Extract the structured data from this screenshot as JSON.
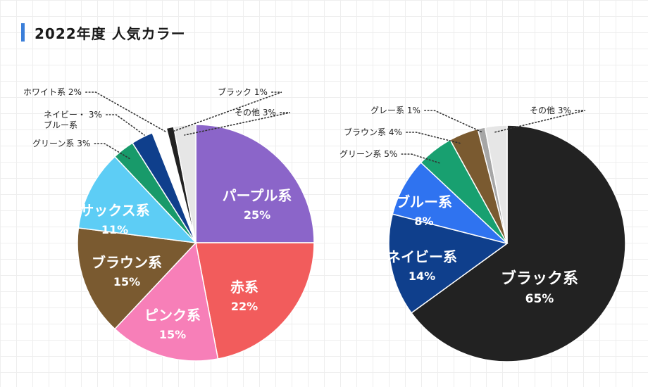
{
  "header": {
    "title": "2022年度 人気カラー"
  },
  "colors": {
    "title_accent": "#3b7fd9"
  },
  "chart_data": [
    {
      "type": "pie",
      "slices": [
        {
          "label": "パープル系",
          "value": 25,
          "pct_text": "25%",
          "color": "#8b65c9",
          "label_style": "inside"
        },
        {
          "label": "赤系",
          "value": 22,
          "pct_text": "22%",
          "color": "#f25c5c",
          "label_style": "inside"
        },
        {
          "label": "ピンク系",
          "value": 15,
          "pct_text": "15%",
          "color": "#f77fb8",
          "label_style": "inside"
        },
        {
          "label": "ブラウン系",
          "value": 15,
          "pct_text": "15%",
          "color": "#7a5a30",
          "label_style": "inside"
        },
        {
          "label": "サックス系",
          "value": 11,
          "pct_text": "11%",
          "color": "#5dcdf5",
          "label_style": "inside"
        },
        {
          "label": "グリーン系",
          "value": 3,
          "pct_text": "3%",
          "color": "#189a6a",
          "label_style": "outside",
          "line1": "グリーン系 3%"
        },
        {
          "label": "ネイビー・ブルー系",
          "value": 3,
          "pct_text": "3%",
          "color": "#0f3f8c",
          "label_style": "outside",
          "line1": "ネイビー・ 3%",
          "line2": "ブルー系"
        },
        {
          "label": "ホワイト系",
          "value": 2,
          "pct_text": "2%",
          "color": "#ffffff",
          "label_style": "outside",
          "line1": "ホワイト系 2%"
        },
        {
          "label": "ブラック",
          "value": 1,
          "pct_text": "1%",
          "color": "#222222",
          "label_style": "outside",
          "line1": "ブラック 1%"
        },
        {
          "label": "その他",
          "value": 3,
          "pct_text": "3%",
          "color": "#e6e6e6",
          "label_style": "outside",
          "line1": "その他 3%"
        }
      ]
    },
    {
      "type": "pie",
      "slices": [
        {
          "label": "ブラック系",
          "value": 65,
          "pct_text": "65%",
          "color": "#222222",
          "label_style": "inside"
        },
        {
          "label": "ネイビー系",
          "value": 14,
          "pct_text": "14%",
          "color": "#0f3f8c",
          "label_style": "inside"
        },
        {
          "label": "ブルー系",
          "value": 8,
          "pct_text": "8%",
          "color": "#2f73f0",
          "label_style": "inside"
        },
        {
          "label": "グリーン系",
          "value": 5,
          "pct_text": "5%",
          "color": "#18a070",
          "label_style": "outside",
          "line1": "グリーン系 5%"
        },
        {
          "label": "ブラウン系",
          "value": 4,
          "pct_text": "4%",
          "color": "#7a5a30",
          "label_style": "outside",
          "line1": "ブラウン系 4%"
        },
        {
          "label": "グレー系",
          "value": 1,
          "pct_text": "1%",
          "color": "#a6a6a6",
          "label_style": "outside",
          "line1": "グレー系 1%"
        },
        {
          "label": "その他",
          "value": 3,
          "pct_text": "3%",
          "color": "#e6e6e6",
          "label_style": "outside",
          "line1": "その他 3%"
        }
      ]
    }
  ]
}
